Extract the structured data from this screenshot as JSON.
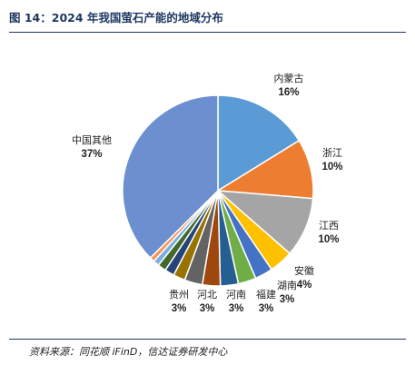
{
  "header": {
    "title": "图 14：2024 年我国萤石产能的地域分布"
  },
  "footer": {
    "source": "资料来源：同花顺 iFinD，信达证券研发中心"
  },
  "chart_data": {
    "type": "pie",
    "start_angle_deg": 0,
    "direction": "clockwise",
    "slices": [
      {
        "name": "内蒙古",
        "value": 16,
        "label": "16%",
        "color": "#5b9bd5"
      },
      {
        "name": "浙江",
        "value": 10,
        "label": "10%",
        "color": "#ed7d31"
      },
      {
        "name": "江西",
        "value": 10,
        "label": "10%",
        "color": "#a5a5a5"
      },
      {
        "name": "安徽",
        "value": 4,
        "label": "4%",
        "color": "#ffc000"
      },
      {
        "name": "湖南",
        "value": 3,
        "label": "3%",
        "color": "#4472c4"
      },
      {
        "name": "福建",
        "value": 3,
        "label": "3%",
        "color": "#70ad47"
      },
      {
        "name": "河南",
        "value": 3,
        "label": "3%",
        "color": "#255e91"
      },
      {
        "name": "河北",
        "value": 3,
        "label": "3%",
        "color": "#9e480e"
      },
      {
        "name": "贵州",
        "value": 3,
        "label": "3%",
        "color": "#636363"
      },
      {
        "name": "",
        "value": 2,
        "label": "",
        "color": "#997300"
      },
      {
        "name": "",
        "value": 1.6,
        "label": "",
        "color": "#264478"
      },
      {
        "name": "",
        "value": 1.4,
        "label": "",
        "color": "#43682b"
      },
      {
        "name": "",
        "value": 1,
        "label": "",
        "color": "#7cafdd"
      },
      {
        "name": "",
        "value": 0.8,
        "label": "",
        "color": "#f1975a"
      },
      {
        "name": "中国其他",
        "value": 37,
        "label": "37%",
        "color": "#6b8fcf"
      }
    ]
  }
}
